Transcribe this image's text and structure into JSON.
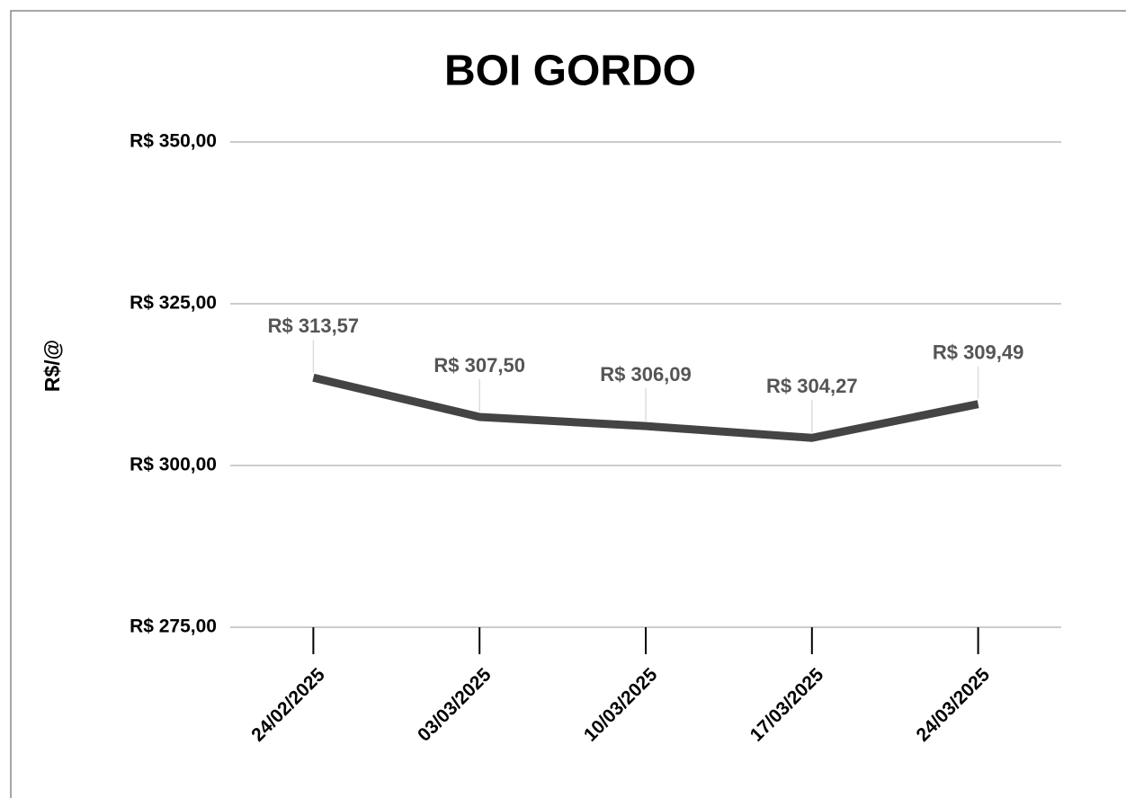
{
  "chart_data": {
    "type": "line",
    "title": "BOI GORDO",
    "ylabel": "R$/@",
    "categories": [
      "24/02/2025",
      "03/03/2025",
      "10/03/2025",
      "17/03/2025",
      "24/03/2025"
    ],
    "series": [
      {
        "name": "BOI GORDO",
        "color": "#444444",
        "values": [
          313.57,
          307.5,
          306.09,
          304.27,
          309.49
        ],
        "value_labels": [
          "R$ 313,57",
          "R$ 307,50",
          "R$ 306,09",
          "R$ 304,27",
          "R$ 309,49"
        ]
      }
    ],
    "ylim": [
      275,
      350
    ],
    "yticks": [
      {
        "value": 275,
        "label": "R$ 275,00"
      },
      {
        "value": 300,
        "label": "R$ 300,00"
      },
      {
        "value": 325,
        "label": "R$ 325,00"
      },
      {
        "value": 350,
        "label": "R$ 350,00"
      }
    ],
    "grid": true
  }
}
